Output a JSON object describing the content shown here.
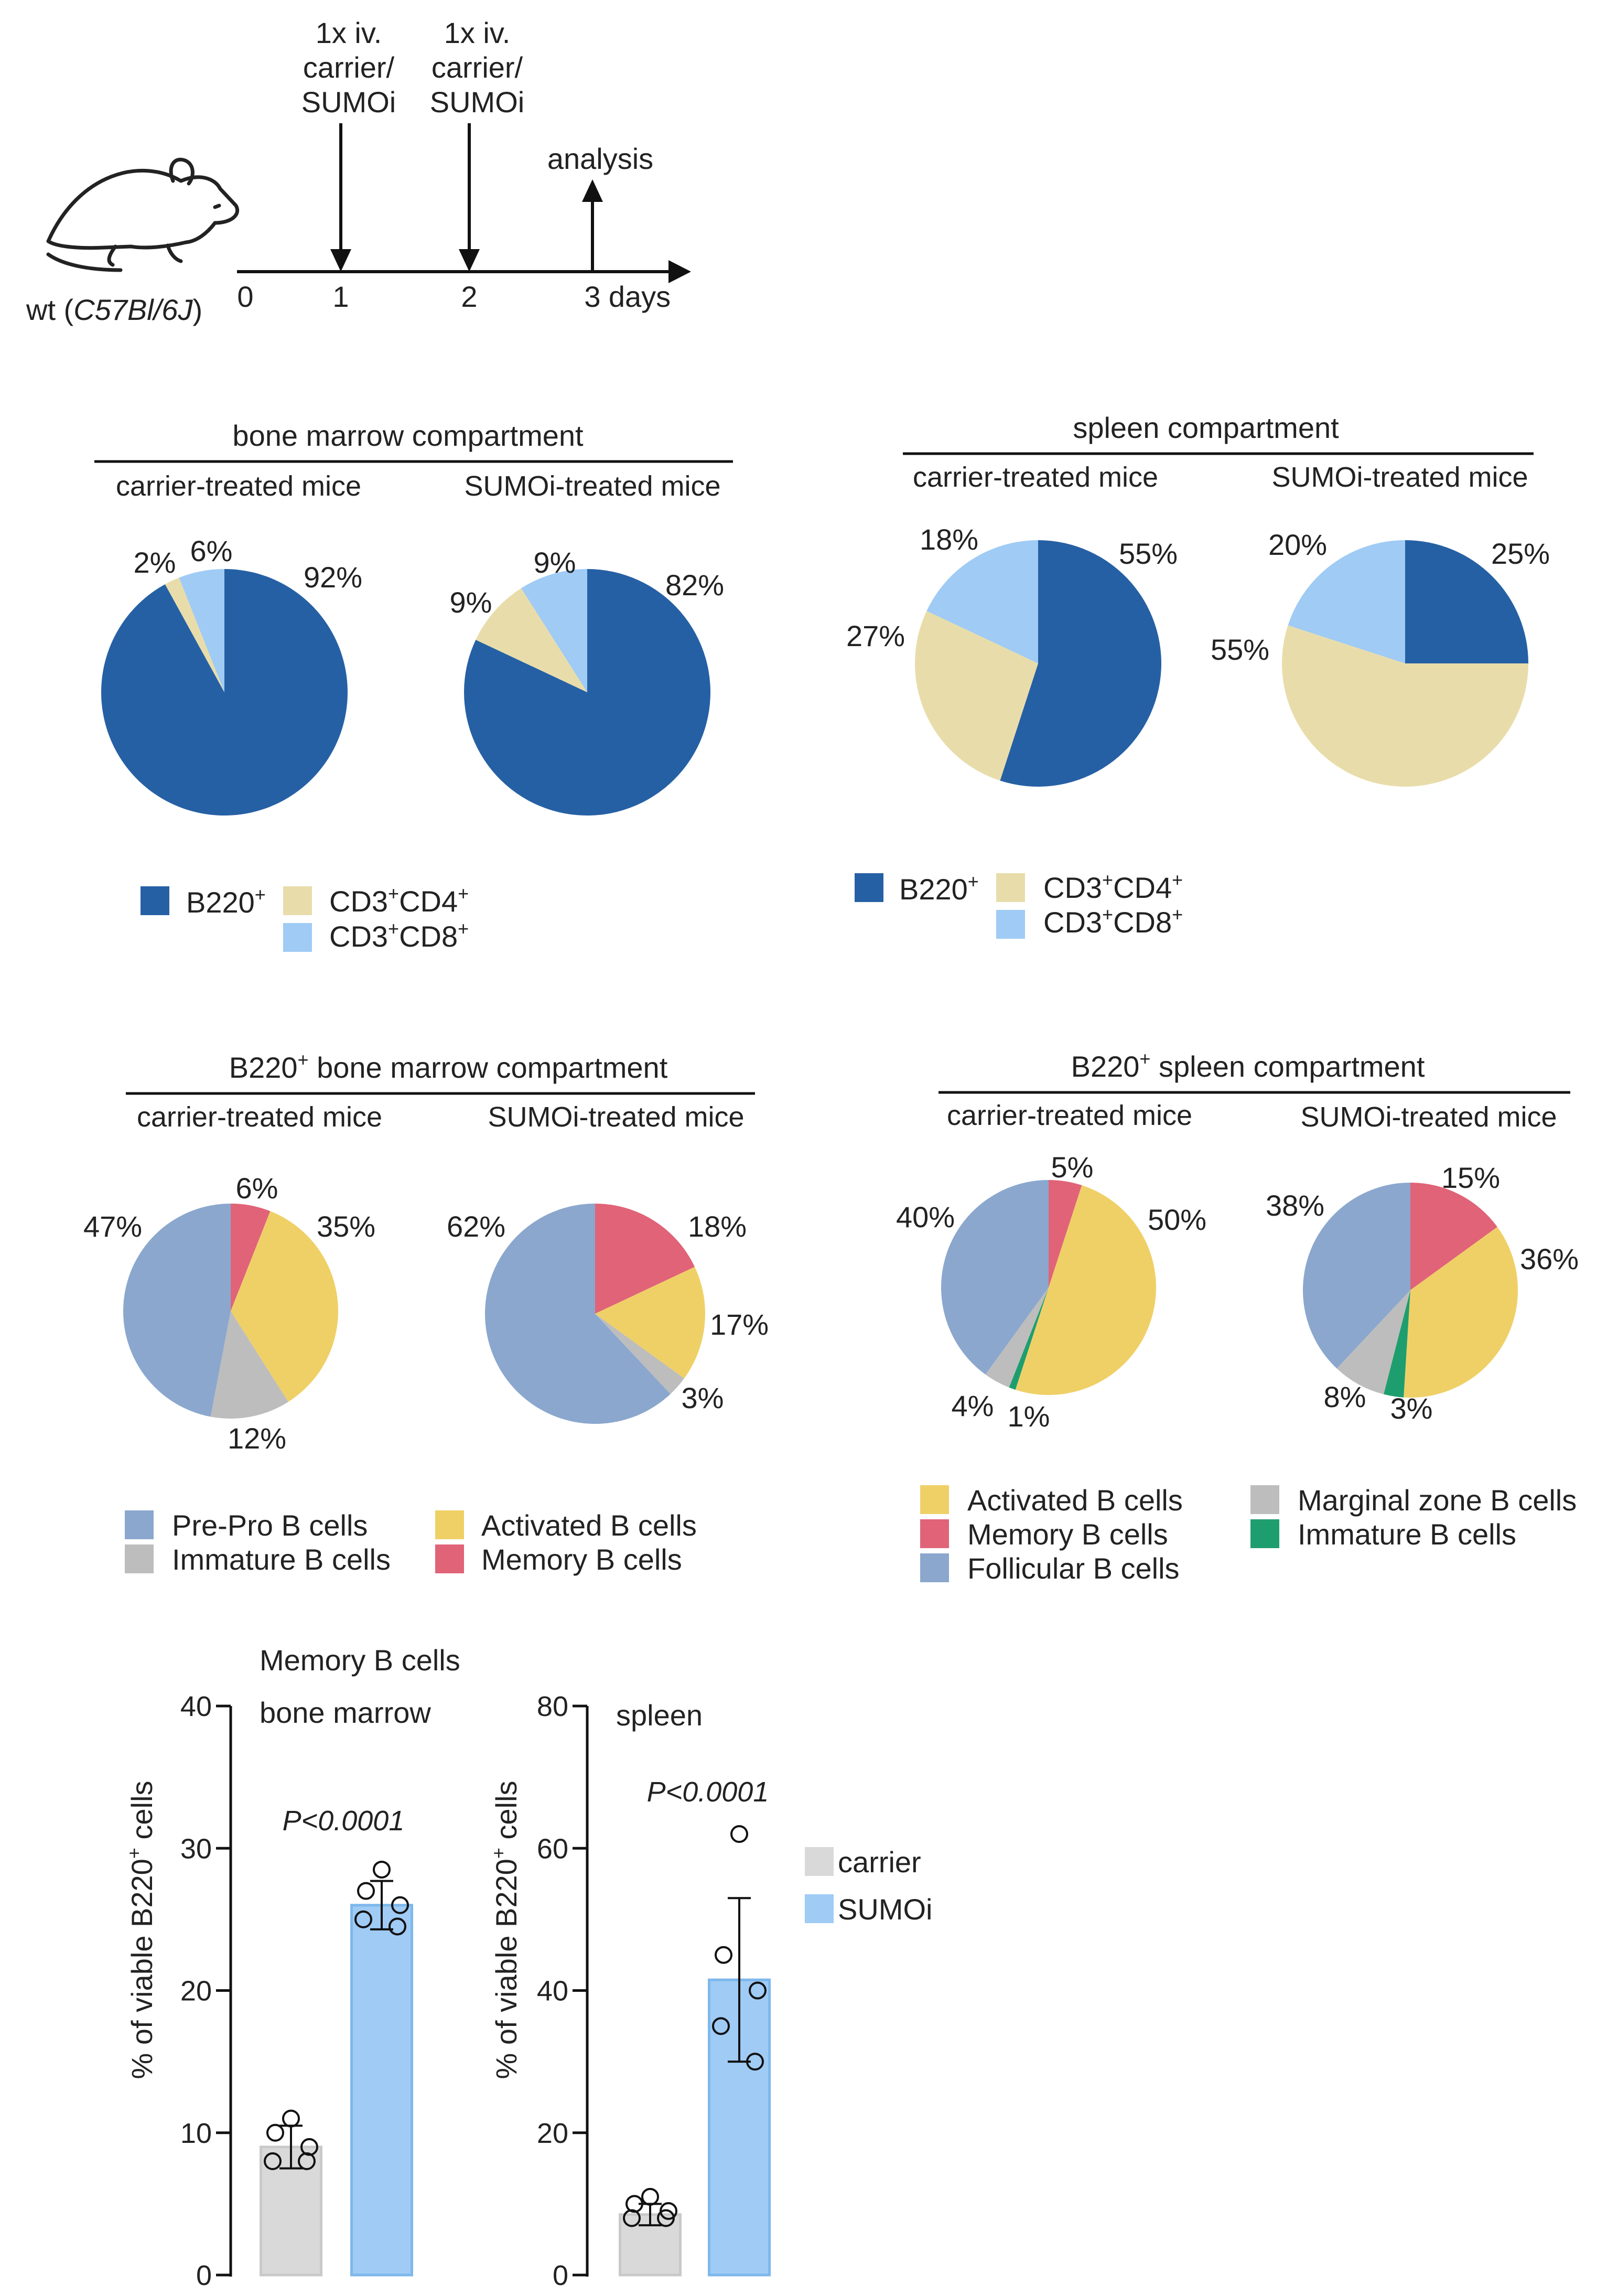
{
  "timeline": {
    "mouse_label_prefix": "wt (",
    "mouse_strain": "C57Bl/6J",
    "mouse_label_suffix": ")",
    "tick_labels": [
      "0",
      "1",
      "2",
      "3"
    ],
    "unit": "days",
    "injections": [
      {
        "lines": [
          "1x iv.",
          "carrier/",
          "SUMOi"
        ]
      },
      {
        "lines": [
          "1x iv.",
          "carrier/",
          "SUMOi"
        ]
      }
    ],
    "analysis_label": "analysis"
  },
  "chart_data": [
    {
      "type": "pie",
      "title": "bone marrow compartment",
      "groups": [
        {
          "name": "carrier-treated mice",
          "slices": [
            {
              "label": "B220+",
              "value": 92,
              "text": "92%"
            },
            {
              "label": "CD3+CD4+",
              "value": 2,
              "text": "2%"
            },
            {
              "label": "CD3+CD8+",
              "value": 6,
              "text": "6%"
            }
          ]
        },
        {
          "name": "SUMOi-treated mice",
          "slices": [
            {
              "label": "B220+",
              "value": 82,
              "text": "82%"
            },
            {
              "label": "CD3+CD4+",
              "value": 9,
              "text": "9%"
            },
            {
              "label": "CD3+CD8+",
              "value": 9,
              "text": "9%"
            }
          ]
        }
      ],
      "legend": [
        {
          "base": "B220",
          "sup1": "+",
          "mid": "",
          "sup2": "",
          "color": "#2660A4"
        },
        {
          "base": "CD3",
          "sup1": "+",
          "mid": "CD4",
          "sup2": "+",
          "color": "#E8DDAA"
        },
        {
          "base": "CD3",
          "sup1": "+",
          "mid": "CD8",
          "sup2": "+",
          "color": "#9FCBF5"
        }
      ]
    },
    {
      "type": "pie",
      "title": "spleen compartment",
      "groups": [
        {
          "name": "carrier-treated mice",
          "slices": [
            {
              "label": "B220+",
              "value": 55,
              "text": "55%"
            },
            {
              "label": "CD3+CD4+",
              "value": 27,
              "text": "27%"
            },
            {
              "label": "CD3+CD8+",
              "value": 18,
              "text": "18%"
            }
          ]
        },
        {
          "name": "SUMOi-treated mice",
          "slices": [
            {
              "label": "B220+",
              "value": 25,
              "text": "25%"
            },
            {
              "label": "CD3+CD4+",
              "value": 55,
              "text": "55%"
            },
            {
              "label": "CD3+CD8+",
              "value": 20,
              "text": "20%"
            }
          ]
        }
      ],
      "legend": [
        {
          "base": "B220",
          "sup1": "+",
          "mid": "",
          "sup2": "",
          "color": "#2660A4"
        },
        {
          "base": "CD3",
          "sup1": "+",
          "mid": "CD4",
          "sup2": "+",
          "color": "#E8DDAA"
        },
        {
          "base": "CD3",
          "sup1": "+",
          "mid": "CD8",
          "sup2": "+",
          "color": "#9FCBF5"
        }
      ]
    },
    {
      "type": "pie",
      "title_base": "B220",
      "title_sup": "+",
      "title_rest": " bone marrow compartment",
      "groups": [
        {
          "name": "carrier-treated mice",
          "slices": [
            {
              "label": "Memory B cells",
              "value": 6,
              "text": "6%"
            },
            {
              "label": "Activated B cells",
              "value": 35,
              "text": "35%"
            },
            {
              "label": "Immature B cells",
              "value": 12,
              "text": "12%"
            },
            {
              "label": "Pre-Pro B cells",
              "value": 47,
              "text": "47%"
            }
          ]
        },
        {
          "name": "SUMOi-treated mice",
          "slices": [
            {
              "label": "Memory B cells",
              "value": 18,
              "text": "18%"
            },
            {
              "label": "Activated B cells",
              "value": 17,
              "text": "17%"
            },
            {
              "label": "Immature B cells",
              "value": 3,
              "text": "3%"
            },
            {
              "label": "Pre-Pro B cells",
              "value": 62,
              "text": "62%"
            }
          ]
        }
      ],
      "legend": [
        {
          "label": "Pre-Pro B cells",
          "color": "#8BA7CE"
        },
        {
          "label": "Immature B cells",
          "color": "#BDBDBD"
        },
        {
          "label": "Activated B cells",
          "color": "#EFD067"
        },
        {
          "label": "Memory B cells",
          "color": "#E06378"
        }
      ]
    },
    {
      "type": "pie",
      "title_base": "B220",
      "title_sup": "+",
      "title_rest": " spleen compartment",
      "groups": [
        {
          "name": "carrier-treated mice",
          "slices": [
            {
              "label": "Memory B cells",
              "value": 5,
              "text": "5%"
            },
            {
              "label": "Activated B cells",
              "value": 50,
              "text": "50%"
            },
            {
              "label": "Immature B cells",
              "value": 1,
              "text": "1%"
            },
            {
              "label": "Marginal zone B cells",
              "value": 4,
              "text": "4%"
            },
            {
              "label": "Follicular B cells",
              "value": 40,
              "text": "40%"
            }
          ]
        },
        {
          "name": "SUMOi-treated mice",
          "slices": [
            {
              "label": "Memory B cells",
              "value": 15,
              "text": "15%"
            },
            {
              "label": "Activated B cells",
              "value": 36,
              "text": "36%"
            },
            {
              "label": "Immature B cells",
              "value": 3,
              "text": "3%"
            },
            {
              "label": "Marginal zone B cells",
              "value": 8,
              "text": "8%"
            },
            {
              "label": "Follicular B cells",
              "value": 38,
              "text": "38%"
            }
          ]
        }
      ],
      "legend": [
        {
          "label": "Activated B cells",
          "color": "#EFD067"
        },
        {
          "label": "Memory B cells",
          "color": "#E06378"
        },
        {
          "label": "Follicular B cells",
          "color": "#8BA7CE"
        },
        {
          "label": "Marginal zone B cells",
          "color": "#BDBDBD"
        },
        {
          "label": "Immature B cells",
          "color": "#1E9E6E"
        }
      ]
    },
    {
      "type": "bar",
      "title": "Memory B cells",
      "panel": "bone marrow",
      "ylabel_base": "% of viable B220",
      "ylabel_sup": "+",
      "ylabel_rest": " cells",
      "ylim": [
        0,
        40
      ],
      "yticks": [
        0,
        10,
        20,
        30,
        40
      ],
      "categories": [
        "carrier",
        "SUMOi"
      ],
      "values": [
        9,
        26
      ],
      "errors": [
        1.5,
        1.7
      ],
      "points": [
        [
          11,
          10,
          9,
          8,
          8
        ],
        [
          28.5,
          27,
          26,
          25,
          24.5
        ]
      ],
      "pvalue": "P<0.0001",
      "colors": [
        "#D9D9D9",
        "#9FCBF5"
      ]
    },
    {
      "type": "bar",
      "panel": "spleen",
      "ylabel_base": "% of viable B220",
      "ylabel_sup": "+",
      "ylabel_rest": " cells",
      "ylim": [
        0,
        80
      ],
      "yticks": [
        0,
        20,
        40,
        60,
        80
      ],
      "categories": [
        "carrier",
        "SUMOi"
      ],
      "values": [
        8.5,
        41.5
      ],
      "errors": [
        1.5,
        11.5
      ],
      "points": [
        [
          11,
          10,
          9,
          8,
          8
        ],
        [
          62,
          45,
          40,
          35,
          30
        ]
      ],
      "pvalue": "P<0.0001",
      "colors": [
        "#D9D9D9",
        "#9FCBF5"
      ],
      "legend": [
        {
          "label": "carrier",
          "color": "#D9D9D9"
        },
        {
          "label": "SUMOi",
          "color": "#9FCBF5"
        }
      ]
    }
  ]
}
